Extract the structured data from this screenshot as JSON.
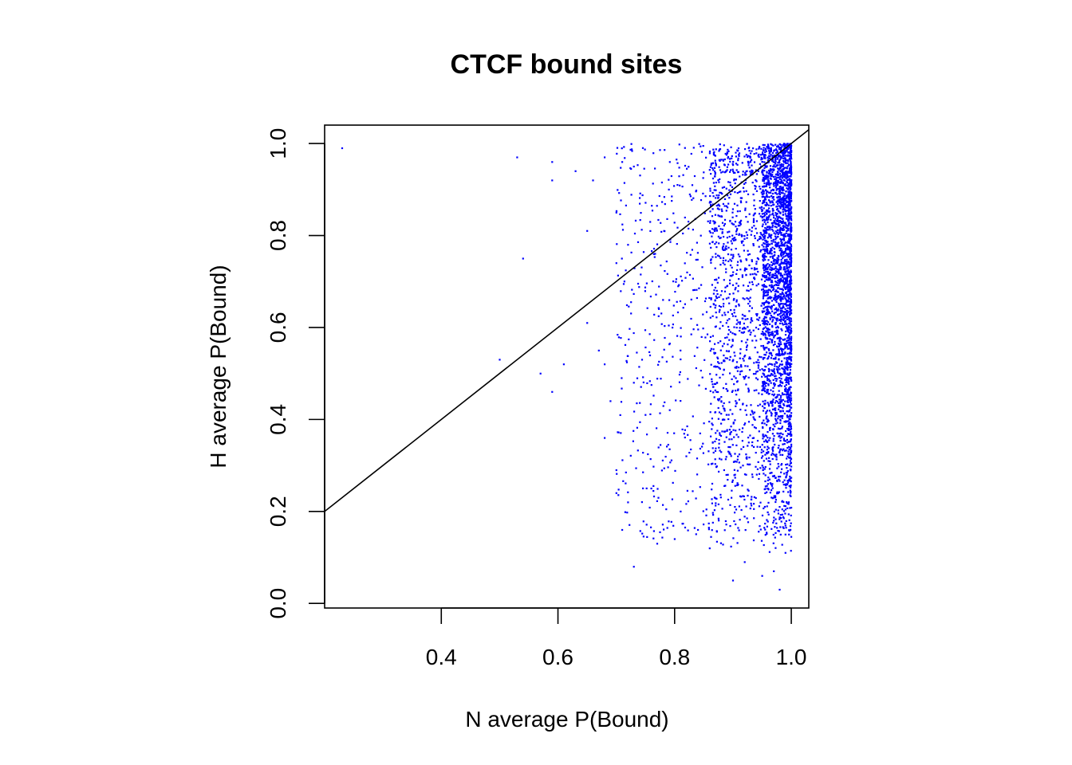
{
  "chart_data": {
    "type": "scatter",
    "title": "CTCF bound sites",
    "xlabel": "N average P(Bound)",
    "ylabel": "H average P(Bound)",
    "xlim": [
      0.2,
      1.03
    ],
    "ylim": [
      -0.01,
      1.04
    ],
    "xticks": [
      0.4,
      0.6,
      0.8,
      1.0
    ],
    "xtick_labels": [
      "0.4",
      "0.6",
      "0.8",
      "1.0"
    ],
    "yticks": [
      0.0,
      0.2,
      0.4,
      0.6,
      0.8,
      1.0
    ],
    "ytick_labels": [
      "0.0",
      "0.2",
      "0.4",
      "0.6",
      "0.8",
      "1.0"
    ],
    "grid": false,
    "legend": "none",
    "point_color": "#0000ff",
    "reference_line": {
      "type": "identity",
      "slope": 1,
      "intercept": 0,
      "color": "#000000"
    },
    "series": [
      {
        "points": [
          [
            0.23,
            0.99
          ],
          [
            0.53,
            0.97
          ],
          [
            0.59,
            0.96
          ],
          [
            0.59,
            0.92
          ],
          [
            0.63,
            0.94
          ],
          [
            0.66,
            0.92
          ],
          [
            0.68,
            0.97
          ],
          [
            0.71,
            0.96
          ],
          [
            0.73,
            0.95
          ],
          [
            0.54,
            0.75
          ],
          [
            0.5,
            0.53
          ],
          [
            0.57,
            0.5
          ],
          [
            0.59,
            0.46
          ],
          [
            0.61,
            0.52
          ],
          [
            0.65,
            0.81
          ],
          [
            0.65,
            0.61
          ],
          [
            0.67,
            0.55
          ],
          [
            0.68,
            0.52
          ],
          [
            0.69,
            0.44
          ],
          [
            0.68,
            0.36
          ],
          [
            0.7,
            0.85
          ],
          [
            0.7,
            0.74
          ],
          [
            0.7,
            0.29
          ],
          [
            0.7,
            0.24
          ],
          [
            0.71,
            0.16
          ],
          [
            0.72,
            0.22
          ],
          [
            0.72,
            0.78
          ],
          [
            0.73,
            0.08
          ],
          [
            0.73,
            0.48
          ],
          [
            0.75,
            0.41
          ],
          [
            0.76,
            0.25
          ],
          [
            0.77,
            0.13
          ],
          [
            0.78,
            0.66
          ],
          [
            0.79,
            0.9
          ],
          [
            0.8,
            0.14
          ],
          [
            0.81,
            0.55
          ],
          [
            0.82,
            0.32
          ],
          [
            0.84,
            0.16
          ],
          [
            0.86,
            0.12
          ],
          [
            0.88,
            0.44
          ],
          [
            0.9,
            0.05
          ],
          [
            0.92,
            0.09
          ],
          [
            0.95,
            0.06
          ],
          [
            0.97,
            0.07
          ],
          [
            0.98,
            0.03
          ],
          [
            0.99,
            0.11
          ],
          [
            0.99,
            0.15
          ],
          [
            0.98,
            0.21
          ],
          [
            0.97,
            0.18
          ],
          [
            0.96,
            0.26
          ]
        ],
        "note_values": "additional points concentrated near x = 0.9–1.0"
      }
    ],
    "cloud": {
      "x_min": 0.7,
      "x_max": 1.0,
      "y_min": 0.02,
      "y_max": 1.0,
      "dense_x_min": 0.95,
      "count": 4200
    }
  }
}
